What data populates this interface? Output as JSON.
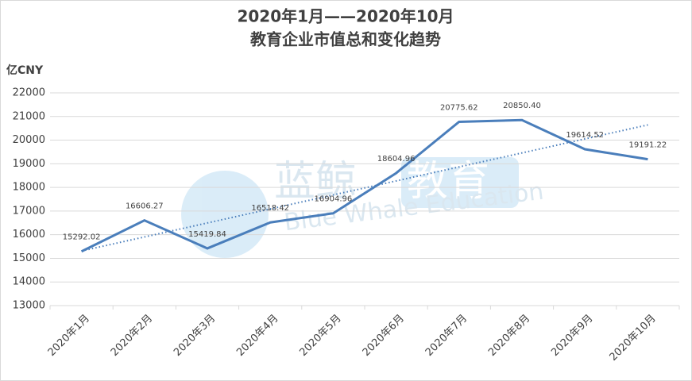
{
  "chart_data": {
    "type": "line",
    "title": [
      "2020年1月——2020年10月",
      "教育企业市值总和变化趋势"
    ],
    "y_label": "亿CNY",
    "watermark": [
      "蓝鲸",
      "教育",
      "Blue Whale Education"
    ],
    "categories": [
      "2020年1月",
      "2020年2月",
      "2020年3月",
      "2020年4月",
      "2020年5月",
      "2020年6月",
      "2020年7月",
      "2020年8月",
      "2020年9月",
      "2020年10月"
    ],
    "values": [
      15292.02,
      16606.27,
      15419.84,
      16518.42,
      16904.96,
      18604.96,
      20775.62,
      20850.4,
      19614.52,
      19191.22
    ],
    "value_labels": [
      "15292.02",
      "16606.27",
      "15419.84",
      "16518.42",
      "16904.96",
      "18604.96",
      "20775.62",
      "20850.40",
      "19614.52",
      "19191.22"
    ],
    "color": "#4a7ebb",
    "trendline": "linear",
    "ylim": [
      13000,
      22000
    ],
    "yticks": [
      13000,
      14000,
      15000,
      16000,
      17000,
      18000,
      19000,
      20000,
      21000,
      22000
    ],
    "grid": true
  }
}
